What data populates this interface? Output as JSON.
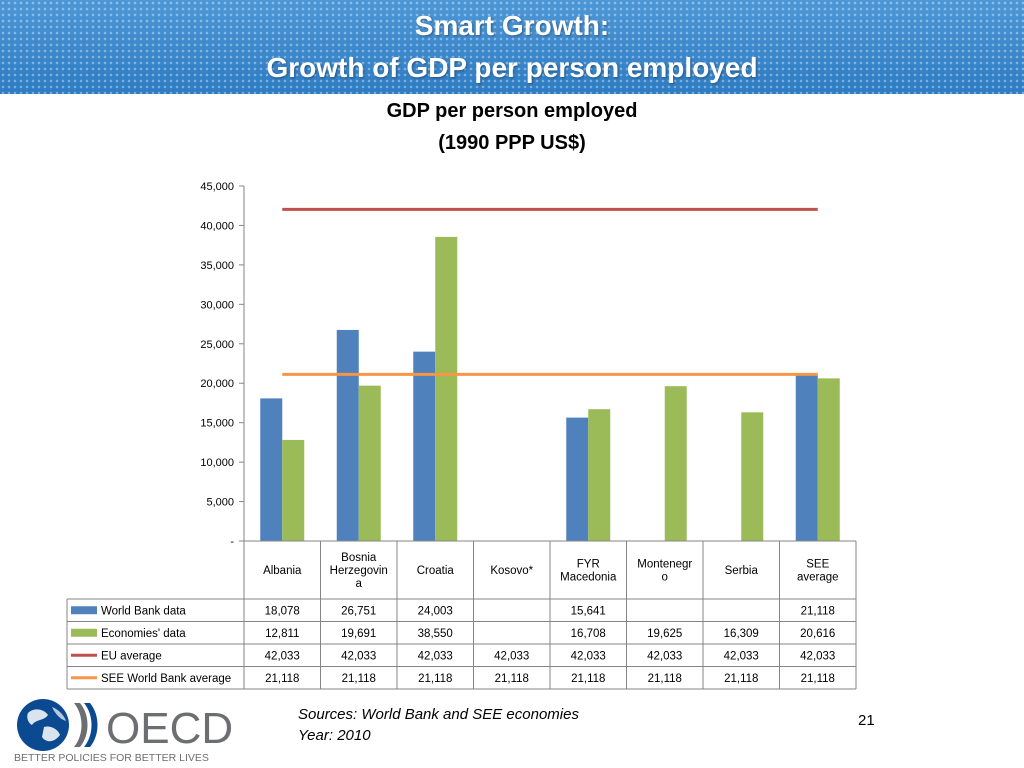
{
  "header": {
    "title_line1": "Smart Growth:",
    "title_line2": "Growth of GDP per person employed"
  },
  "chart_data": {
    "type": "bar",
    "title": "GDP per person employed",
    "subtitle": "(1990 PPP US$)",
    "categories": [
      "Albania",
      "Bosnia Herzegovina",
      "Croatia",
      "Kosovo*",
      "FYR Macedonia",
      "Montenegro",
      "Serbia",
      "SEE average"
    ],
    "category_label_lines": [
      [
        "Albania"
      ],
      [
        "Bosnia",
        "Herzegovin",
        "a"
      ],
      [
        "Croatia"
      ],
      [
        "Kosovo*"
      ],
      [
        "FYR",
        "Macedonia"
      ],
      [
        "Montenegr",
        "o"
      ],
      [
        "Serbia"
      ],
      [
        "SEE",
        "average"
      ]
    ],
    "ylim": [
      0,
      45000
    ],
    "yticks": [
      0,
      5000,
      10000,
      15000,
      20000,
      25000,
      30000,
      35000,
      40000,
      45000
    ],
    "ytick_labels": [
      "-",
      "5,000",
      "10,000",
      "15,000",
      "20,000",
      "25,000",
      "30,000",
      "35,000",
      "40,000",
      "45,000"
    ],
    "grid": false,
    "legend_placement": "data table below chart",
    "bar_series": [
      {
        "name": "World Bank data",
        "color": "#4f81bd",
        "values": [
          18078,
          26751,
          24003,
          null,
          15641,
          null,
          null,
          21118
        ]
      },
      {
        "name": "Economies' data",
        "color": "#9bbb59",
        "values": [
          12811,
          19691,
          38550,
          null,
          16708,
          19625,
          16309,
          20616
        ]
      }
    ],
    "line_series": [
      {
        "name": "EU average",
        "color": "#c0504d",
        "values": [
          42033,
          42033,
          42033,
          42033,
          42033,
          42033,
          42033,
          42033
        ]
      },
      {
        "name": "SEE World Bank average",
        "color": "#f79646",
        "values": [
          21118,
          21118,
          21118,
          21118,
          21118,
          21118,
          21118,
          21118
        ]
      }
    ],
    "table_rows": [
      [
        "18,078",
        "26,751",
        "24,003",
        "",
        "15,641",
        "",
        "",
        "21,118"
      ],
      [
        "12,811",
        "19,691",
        "38,550",
        "",
        "16,708",
        "19,625",
        "16,309",
        "20,616"
      ],
      [
        "42,033",
        "42,033",
        "42,033",
        "42,033",
        "42,033",
        "42,033",
        "42,033",
        "42,033"
      ],
      [
        "21,118",
        "21,118",
        "21,118",
        "21,118",
        "21,118",
        "21,118",
        "21,118",
        "21,118"
      ]
    ]
  },
  "footer": {
    "sources_line1": "Sources: World Bank and SEE economies",
    "sources_line2": "Year: 2010",
    "page_number": "21",
    "logo_text": "OECD",
    "logo_tagline": "BETTER POLICIES FOR BETTER LIVES"
  },
  "colors": {
    "header_blue": "#2f7fc4",
    "oecd_blue": "#0b4a91",
    "oecd_gray": "#6d6e71"
  }
}
